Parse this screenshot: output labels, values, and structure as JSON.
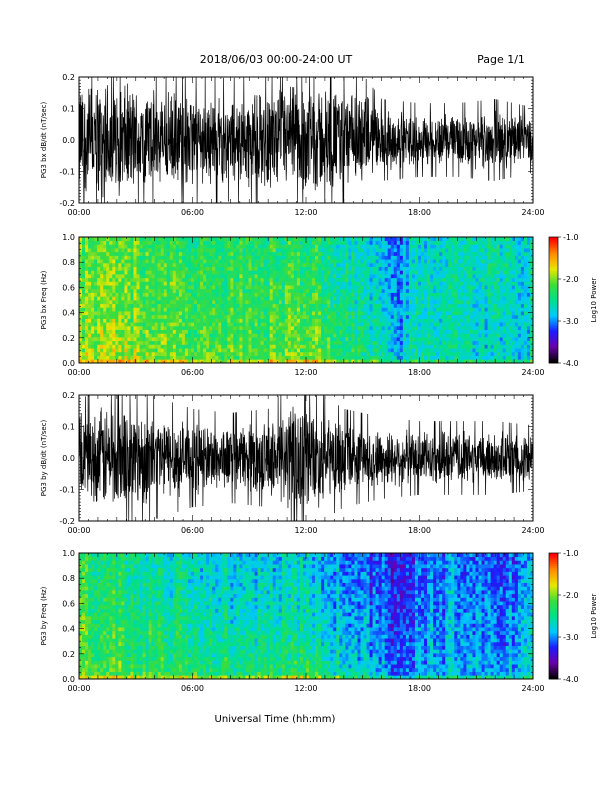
{
  "header": {
    "date_range": "2018/06/03  00:00-24:00 UT",
    "page": "Page 1/1"
  },
  "footer": {
    "xlabel": "Universal Time (hh:mm)"
  },
  "colors": {
    "trace": "#000000",
    "background": "#ffffff",
    "colormap": [
      "#000000",
      "#6a00a8",
      "#1c1cff",
      "#00c8ff",
      "#00e08a",
      "#3ddc3d",
      "#e8e800",
      "#ff8c00",
      "#ff0000"
    ]
  },
  "chart_data": [
    {
      "type": "line",
      "ylabel": "PG3 bx dB/dt (nT/sec)",
      "xlim": [
        0,
        24
      ],
      "ylim": [
        -0.2,
        0.2
      ],
      "xticks": [
        "00:00",
        "06:00",
        "12:00",
        "18:00",
        "24:00"
      ],
      "yticks": [
        "0.2",
        "0.1",
        "0.0",
        "-0.1",
        "-0.2"
      ],
      "description_amplitude": {
        "hours": [
          0,
          2,
          4,
          6,
          8,
          10,
          12,
          14,
          15,
          16,
          18,
          20,
          22,
          24
        ],
        "envelope": [
          0.2,
          0.2,
          0.17,
          0.16,
          0.15,
          0.17,
          0.2,
          0.17,
          0.16,
          0.1,
          0.09,
          0.09,
          0.1,
          0.08
        ]
      }
    },
    {
      "type": "heatmap",
      "ylabel": "PG3 bx Freq (Hz)",
      "colorbar_label": "Log10 Power",
      "xlim": [
        0,
        24
      ],
      "ylim": [
        0,
        1
      ],
      "xticks": [
        "00:00",
        "06:00",
        "12:00",
        "18:00",
        "24:00"
      ],
      "yticks": [
        "1.0",
        "0.8",
        "0.6",
        "0.4",
        "0.2",
        "0.0"
      ],
      "colorbar_range": [
        -4,
        -1
      ],
      "colorbar_ticks": [
        "-1.0",
        "-2.0",
        "-3.0",
        "-4.0"
      ],
      "power_profile": {
        "hours": [
          0,
          3,
          6,
          9,
          12,
          14,
          16,
          17,
          18,
          20,
          22,
          24
        ],
        "log10_power_low_freq": [
          -1.8,
          -1.9,
          -2.0,
          -2.1,
          -1.9,
          -2.2,
          -2.4,
          -2.7,
          -2.5,
          -2.6,
          -2.8,
          -2.6
        ],
        "log10_power_high_freq": [
          -2.1,
          -2.2,
          -2.3,
          -2.3,
          -2.4,
          -2.6,
          -2.8,
          -3.0,
          -2.7,
          -2.6,
          -2.6,
          -2.7
        ]
      }
    },
    {
      "type": "line",
      "ylabel": "PG3 by dB/dt (nT/sec)",
      "xlim": [
        0,
        24
      ],
      "ylim": [
        -0.2,
        0.2
      ],
      "xticks": [
        "00:00",
        "06:00",
        "12:00",
        "18:00",
        "24:00"
      ],
      "yticks": [
        "0.2",
        "0.1",
        "0.0",
        "-0.1",
        "-0.2"
      ],
      "description_amplitude": {
        "hours": [
          0,
          2,
          4,
          6,
          8,
          10,
          11,
          12,
          13,
          14,
          16,
          18,
          20,
          22,
          24
        ],
        "envelope": [
          0.14,
          0.2,
          0.15,
          0.12,
          0.11,
          0.12,
          0.18,
          0.2,
          0.15,
          0.12,
          0.1,
          0.09,
          0.09,
          0.09,
          0.08
        ]
      }
    },
    {
      "type": "heatmap",
      "ylabel": "PG3 by Freq (Hz)",
      "colorbar_label": "Log10 Power",
      "xlim": [
        0,
        24
      ],
      "ylim": [
        0,
        1
      ],
      "xticks": [
        "00:00",
        "06:00",
        "12:00",
        "18:00",
        "24:00"
      ],
      "yticks": [
        "1.0",
        "0.8",
        "0.6",
        "0.4",
        "0.2",
        "0.0"
      ],
      "colorbar_range": [
        -4,
        -1
      ],
      "colorbar_ticks": [
        "-1.0",
        "-2.0",
        "-3.0",
        "-4.0"
      ],
      "power_profile": {
        "hours": [
          0,
          3,
          6,
          9,
          12,
          14,
          16,
          17,
          18,
          20,
          22,
          24
        ],
        "log10_power_low_freq": [
          -2.0,
          -2.1,
          -2.2,
          -2.3,
          -2.2,
          -2.5,
          -2.8,
          -3.1,
          -2.8,
          -2.7,
          -2.9,
          -2.7
        ],
        "log10_power_high_freq": [
          -2.3,
          -2.5,
          -2.7,
          -2.8,
          -2.8,
          -3.0,
          -3.2,
          -3.4,
          -3.1,
          -3.0,
          -3.2,
          -3.0
        ]
      }
    }
  ]
}
